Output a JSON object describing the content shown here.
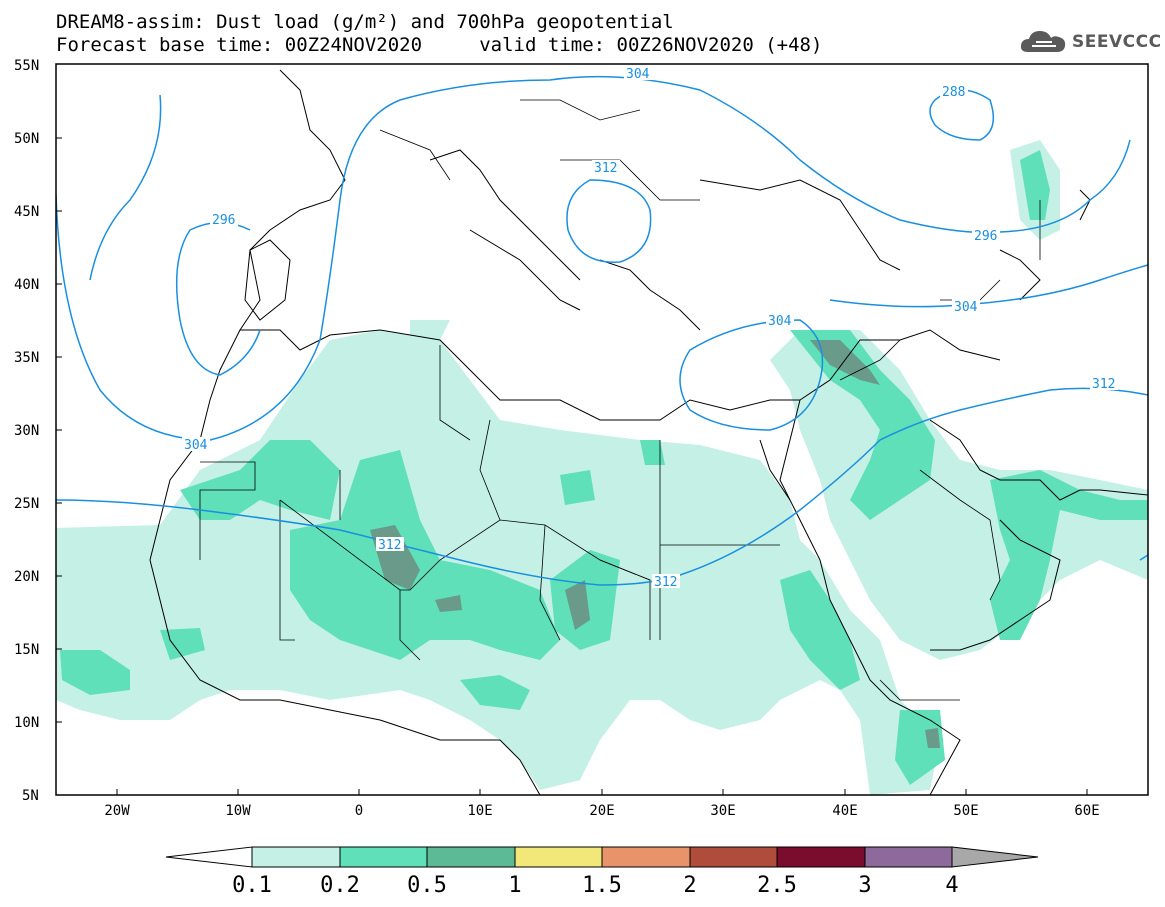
{
  "title": {
    "line1": "DREAM8-assim: Dust load (g/m²) and 700hPa geopotential",
    "line2": "Forecast base time: 00Z24NOV2020     valid time: 00Z26NOV2020 (+48)"
  },
  "logo": {
    "text": "SEEVCCC",
    "icon": "cloud-icon"
  },
  "map": {
    "lat_labels": [
      "55N",
      "50N",
      "45N",
      "40N",
      "35N",
      "30N",
      "25N",
      "20N",
      "15N",
      "10N",
      "5N"
    ],
    "lon_labels": [
      "20W",
      "10W",
      "0",
      "10E",
      "20E",
      "30E",
      "40E",
      "50E",
      "60E"
    ],
    "contour_labels": [
      "304",
      "288",
      "312",
      "296",
      "296",
      "304",
      "304",
      "312",
      "304",
      "312",
      "312"
    ]
  },
  "colorbar": {
    "labels": [
      "0.1",
      "0.2",
      "0.5",
      "1",
      "1.5",
      "2",
      "2.5",
      "3",
      "4"
    ],
    "colors": [
      "#c4f0e6",
      "#5fe0b8",
      "#5cba96",
      "#f2e87a",
      "#e8936a",
      "#b04c3c",
      "#7a0c2e",
      "#8e6a9c",
      "#a8a8a8"
    ]
  },
  "colors": {
    "contour": "#1a8fe0",
    "dust_low": "#c4f0e6",
    "dust_mid": "#5fe0b8",
    "dust_high": "#5cba96",
    "dust_peak": "#6a9a8a"
  }
}
